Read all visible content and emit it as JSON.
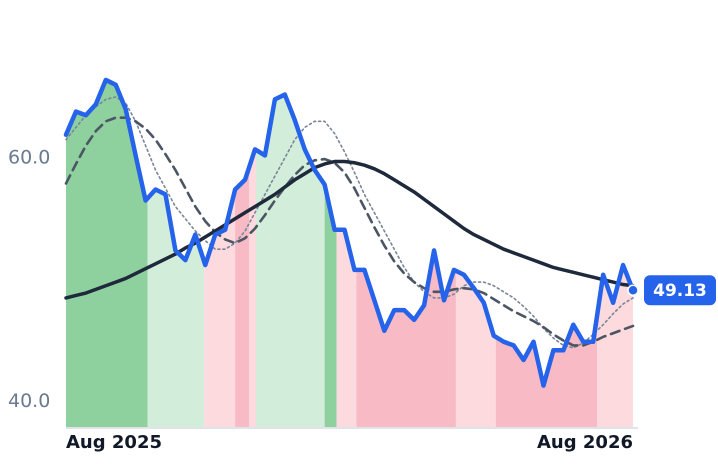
{
  "chart_data": {
    "type": "line",
    "x": [
      0,
      1,
      2,
      3,
      4,
      5,
      6,
      7,
      8,
      9,
      10,
      11,
      12,
      13,
      14,
      15,
      16,
      17,
      18,
      19,
      20,
      21,
      22,
      23,
      24,
      25,
      26,
      27,
      28,
      29,
      30,
      31,
      32,
      33,
      34,
      35,
      36,
      37,
      38,
      39,
      40,
      41,
      42,
      43,
      44,
      45,
      46,
      47,
      48,
      49,
      50,
      51,
      52,
      53,
      54,
      55,
      56,
      57
    ],
    "xlim": [
      0,
      57
    ],
    "xticks": [
      {
        "value": 0,
        "label": "Aug 2025"
      },
      {
        "value": 57,
        "label": "Aug 2026"
      }
    ],
    "ylim": [
      37.9,
      70.5
    ],
    "yticks": [
      {
        "value": 40,
        "label": "40.0"
      },
      {
        "value": 60,
        "label": "60.0"
      }
    ],
    "series": [
      {
        "color": "#2563eb",
        "style": "solid",
        "values": [
          61.9,
          63.8,
          63.5,
          64.4,
          66.4,
          66.0,
          64.0,
          60.2,
          56.5,
          57.4,
          57.0,
          52.4,
          51.6,
          53.7,
          51.2,
          53.7,
          54.1,
          57.4,
          58.2,
          60.7,
          60.2,
          64.8,
          65.2,
          63.1,
          60.7,
          59.0,
          57.8,
          54.1,
          54.1,
          50.8,
          50.8,
          48.3,
          45.8,
          47.5,
          47.5,
          46.7,
          47.9,
          52.4,
          48.3,
          50.8,
          50.4,
          49.3,
          48.1,
          45.4,
          44.9,
          44.6,
          43.4,
          44.9,
          41.3,
          44.2,
          44.2,
          46.3,
          44.9,
          44.9,
          50.4,
          48.1,
          51.2,
          49.13
        ]
      },
      {
        "color": "#7a8597",
        "style": "dotted",
        "values": [
          61.5,
          62.5,
          63.5,
          64.2,
          64.8,
          65.0,
          64.5,
          63.0,
          61.0,
          59.0,
          57.5,
          56.0,
          55.0,
          54.0,
          53.2,
          52.5,
          52.5,
          53.0,
          54.0,
          55.5,
          57.0,
          58.5,
          60.0,
          61.5,
          62.5,
          63.0,
          63.0,
          62.0,
          60.5,
          58.8,
          57.0,
          55.5,
          54.0,
          52.5,
          51.0,
          49.8,
          49.0,
          48.5,
          48.5,
          48.8,
          49.5,
          49.8,
          49.8,
          49.5,
          49.0,
          48.5,
          47.8,
          47.0,
          46.0,
          45.2,
          44.6,
          44.4,
          44.8,
          45.5,
          46.3,
          47.2,
          48.0,
          48.5
        ]
      },
      {
        "color": "#4b5563",
        "style": "dashed",
        "values": [
          57.9,
          59.5,
          61.0,
          62.2,
          63.0,
          63.3,
          63.3,
          63.0,
          62.4,
          61.5,
          60.3,
          59.0,
          57.5,
          56.0,
          54.8,
          53.9,
          53.3,
          53.0,
          53.4,
          54.2,
          55.3,
          56.5,
          57.6,
          58.6,
          59.4,
          59.8,
          59.9,
          59.6,
          58.8,
          57.5,
          55.9,
          54.3,
          52.8,
          51.5,
          50.5,
          49.8,
          49.3,
          49.0,
          49.0,
          49.2,
          49.3,
          49.2,
          48.9,
          48.4,
          47.9,
          47.4,
          47.0,
          46.6,
          46.1,
          45.5,
          45.0,
          44.6,
          44.6,
          44.9,
          45.3,
          45.6,
          45.9,
          46.2
        ]
      },
      {
        "color": "#1e293b",
        "style": "thick",
        "values": [
          48.5,
          48.7,
          48.9,
          49.2,
          49.5,
          49.8,
          50.1,
          50.5,
          50.9,
          51.3,
          51.7,
          52.1,
          52.6,
          53.0,
          53.5,
          54.0,
          54.5,
          55.0,
          55.5,
          56.0,
          56.5,
          57.0,
          57.6,
          58.2,
          58.7,
          59.2,
          59.5,
          59.7,
          59.7,
          59.6,
          59.4,
          59.1,
          58.7,
          58.2,
          57.7,
          57.2,
          56.6,
          56.0,
          55.4,
          54.8,
          54.2,
          53.7,
          53.3,
          52.9,
          52.5,
          52.2,
          51.9,
          51.6,
          51.3,
          51.0,
          50.8,
          50.6,
          50.4,
          50.2,
          50.0,
          49.8,
          49.6,
          49.5
        ]
      }
    ],
    "regions": [
      {
        "start": 0,
        "end": 8.2,
        "color": "#8fd09f"
      },
      {
        "start": 8.2,
        "end": 13.9,
        "color": "#d2eedb"
      },
      {
        "start": 13.9,
        "end": 17,
        "color": "#fcdade"
      },
      {
        "start": 17,
        "end": 18.4,
        "color": "#f8bac5"
      },
      {
        "start": 18.4,
        "end": 19.1,
        "color": "#fcdade"
      },
      {
        "start": 19.1,
        "end": 26,
        "color": "#d2eedb"
      },
      {
        "start": 26,
        "end": 27.2,
        "color": "#8fd09f"
      },
      {
        "start": 27.2,
        "end": 29.2,
        "color": "#fcdade"
      },
      {
        "start": 29.2,
        "end": 39.2,
        "color": "#f8bac5"
      },
      {
        "start": 39.2,
        "end": 43.2,
        "color": "#fcdade"
      },
      {
        "start": 43.2,
        "end": 53.4,
        "color": "#f8bac5"
      },
      {
        "start": 53.4,
        "end": 57,
        "color": "#fcdade"
      }
    ]
  }
}
